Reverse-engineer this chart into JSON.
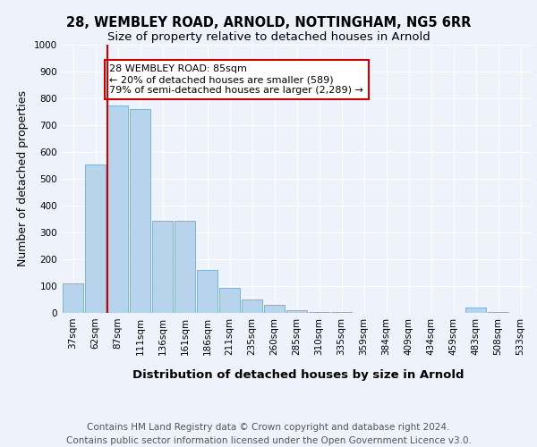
{
  "title_line1": "28, WEMBLEY ROAD, ARNOLD, NOTTINGHAM, NG5 6RR",
  "title_line2": "Size of property relative to detached houses in Arnold",
  "xlabel": "Distribution of detached houses by size in Arnold",
  "ylabel": "Number of detached properties",
  "categories": [
    "37sqm",
    "62sqm",
    "87sqm",
    "111sqm",
    "136sqm",
    "161sqm",
    "186sqm",
    "211sqm",
    "235sqm",
    "260sqm",
    "285sqm",
    "310sqm",
    "335sqm",
    "359sqm",
    "384sqm",
    "409sqm",
    "434sqm",
    "459sqm",
    "483sqm",
    "508sqm",
    "533sqm"
  ],
  "values": [
    110,
    555,
    775,
    760,
    345,
    345,
    160,
    95,
    50,
    30,
    10,
    5,
    2,
    1,
    1,
    1,
    1,
    1,
    20,
    2,
    1
  ],
  "bar_color": "#b8d4ec",
  "bar_edge_color": "#6aaed6",
  "vline_color": "#cc0000",
  "annotation_text": "28 WEMBLEY ROAD: 85sqm\n← 20% of detached houses are smaller (589)\n79% of semi-detached houses are larger (2,289) →",
  "annotation_box_color": "#ffffff",
  "annotation_box_edge": "#cc0000",
  "ylim": [
    0,
    1000
  ],
  "yticks": [
    0,
    100,
    200,
    300,
    400,
    500,
    600,
    700,
    800,
    900,
    1000
  ],
  "footer_text": "Contains HM Land Registry data © Crown copyright and database right 2024.\nContains public sector information licensed under the Open Government Licence v3.0.",
  "bg_color": "#eef2fa",
  "plot_bg_color": "#eef2fa",
  "grid_color": "#ffffff",
  "title_fontsize": 10.5,
  "subtitle_fontsize": 9.5,
  "axis_label_fontsize": 9,
  "tick_fontsize": 7.5,
  "footer_fontsize": 7.5
}
